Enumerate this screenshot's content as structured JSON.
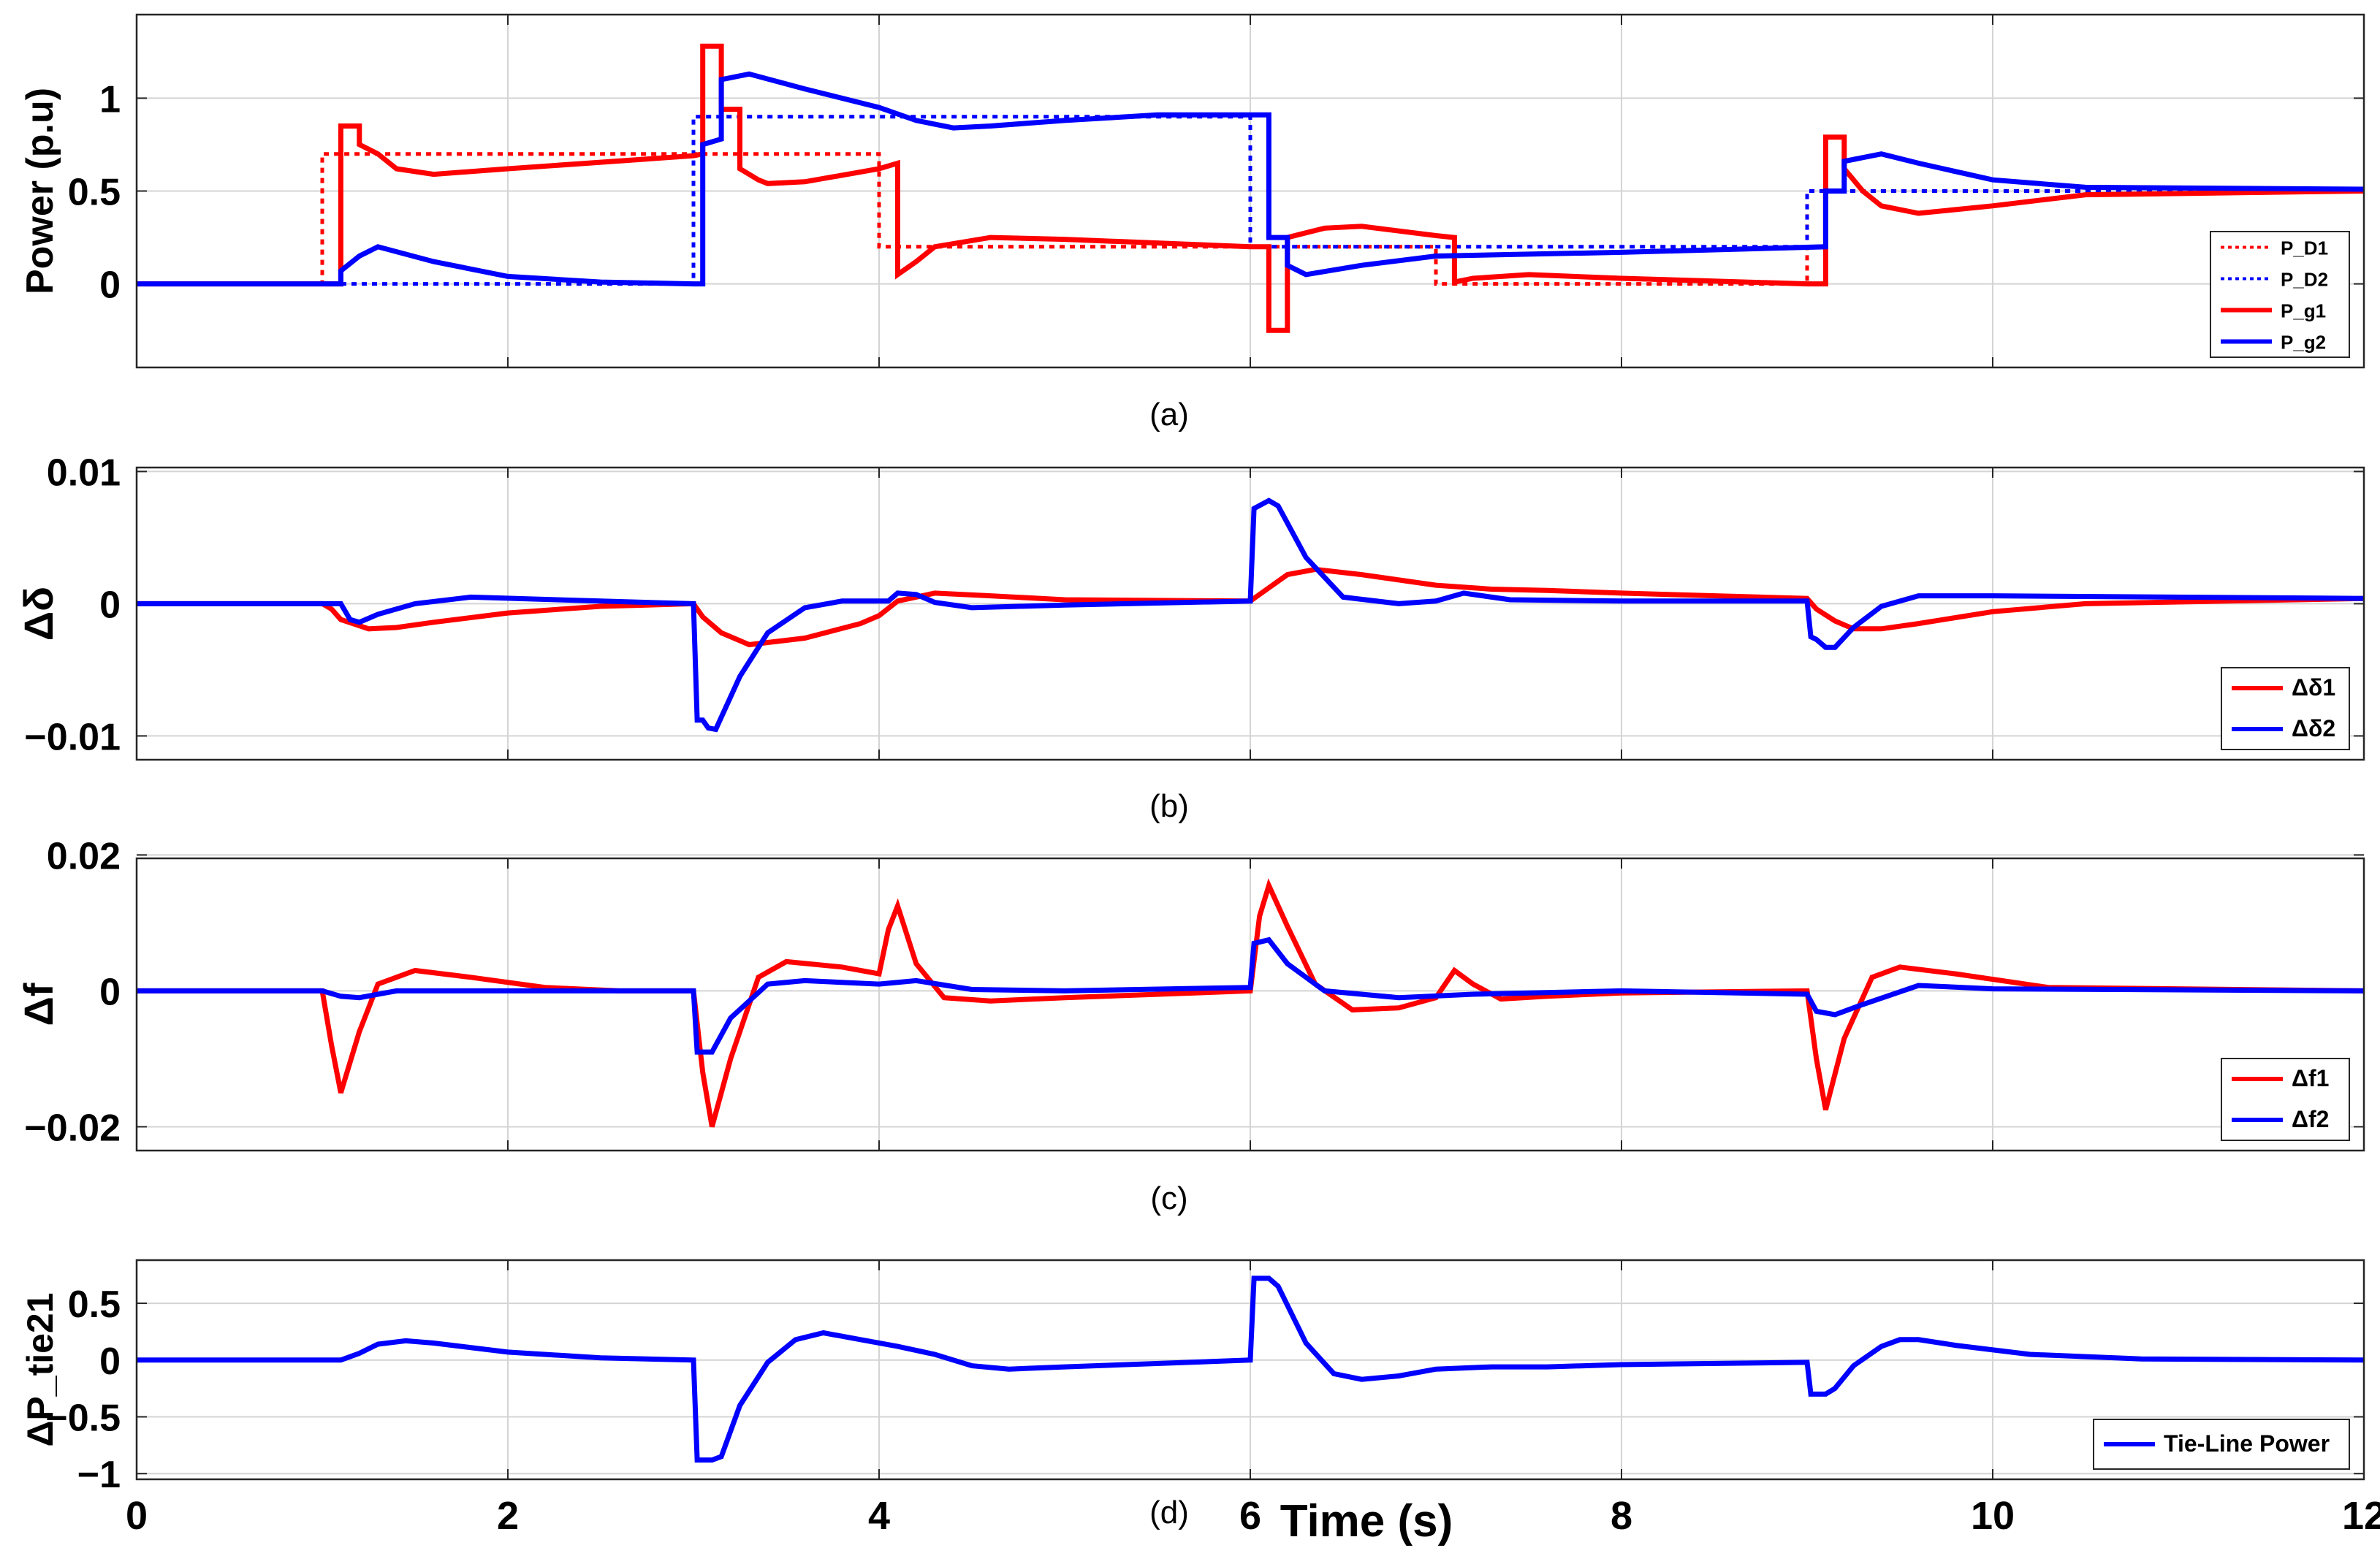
{
  "chart_data": [
    {
      "type": "line",
      "caption": "(a)",
      "ylabel": "Power (p.u)",
      "xlim": [
        0,
        12
      ],
      "ylim": [
        -0.45,
        1.45
      ],
      "xticks": [
        0,
        2,
        4,
        6,
        8,
        10,
        12
      ],
      "yticks": [
        0,
        0.5,
        1
      ],
      "ytick_labels": [
        "0",
        "0.5",
        "1"
      ],
      "grid": true,
      "legend_position": "bottom-right",
      "series": [
        {
          "name": "P_D1",
          "color": "#ff0000",
          "style": "dotted",
          "x": [
            0,
            1,
            1,
            4,
            4,
            7,
            7,
            9,
            9,
            12
          ],
          "y": [
            0,
            0,
            0.7,
            0.7,
            0.2,
            0.2,
            0,
            0,
            0.5,
            0.5
          ]
        },
        {
          "name": "P_D2",
          "color": "#0000ff",
          "style": "dotted",
          "x": [
            0,
            3,
            3,
            6,
            6,
            9,
            9,
            12
          ],
          "y": [
            0,
            0,
            0.9,
            0.9,
            0.2,
            0.2,
            0.5,
            0.5
          ]
        },
        {
          "name": "P_g1",
          "color": "#ff0000",
          "style": "solid",
          "x": [
            0,
            1.1,
            1.1,
            1.2,
            1.2,
            1.3,
            1.4,
            1.6,
            2,
            3,
            3.05,
            3.05,
            3.15,
            3.15,
            3.25,
            3.25,
            3.35,
            3.4,
            3.6,
            4,
            4.1,
            4.1,
            4.2,
            4.3,
            4.6,
            5,
            6,
            6.1,
            6.1,
            6.2,
            6.2,
            6.4,
            6.6,
            7,
            7.1,
            7.1,
            7.2,
            7.5,
            8,
            9,
            9.1,
            9.1,
            9.2,
            9.2,
            9.3,
            9.4,
            9.6,
            10,
            10.5,
            12
          ],
          "y": [
            0,
            0,
            0.85,
            0.85,
            0.75,
            0.7,
            0.62,
            0.59,
            0.62,
            0.69,
            0.7,
            1.28,
            1.28,
            0.94,
            0.94,
            0.62,
            0.56,
            0.54,
            0.55,
            0.62,
            0.65,
            0.05,
            0.12,
            0.2,
            0.25,
            0.24,
            0.2,
            0.2,
            -0.25,
            -0.25,
            0.25,
            0.3,
            0.31,
            0.26,
            0.25,
            0.01,
            0.03,
            0.05,
            0.03,
            0,
            0,
            0.79,
            0.79,
            0.62,
            0.5,
            0.42,
            0.38,
            0.42,
            0.48,
            0.5
          ]
        },
        {
          "name": "P_g2",
          "color": "#0000ff",
          "style": "solid",
          "x": [
            0,
            1.1,
            1.1,
            1.2,
            1.3,
            1.6,
            2,
            2.5,
            3,
            3.05,
            3.05,
            3.15,
            3.15,
            3.3,
            3.6,
            4,
            4.2,
            4.4,
            4.6,
            5,
            5.5,
            6.1,
            6.1,
            6.2,
            6.2,
            6.3,
            6.6,
            7,
            7.5,
            8,
            9.1,
            9.1,
            9.2,
            9.2,
            9.4,
            9.6,
            10,
            10.5,
            12
          ],
          "y": [
            0,
            0,
            0.07,
            0.15,
            0.2,
            0.12,
            0.04,
            0.01,
            0,
            0,
            0.75,
            0.78,
            1.1,
            1.13,
            1.05,
            0.95,
            0.88,
            0.84,
            0.85,
            0.88,
            0.91,
            0.91,
            0.25,
            0.25,
            0.1,
            0.05,
            0.1,
            0.15,
            0.16,
            0.17,
            0.2,
            0.5,
            0.5,
            0.66,
            0.7,
            0.65,
            0.56,
            0.52,
            0.51
          ]
        }
      ]
    },
    {
      "type": "line",
      "caption": "(b)",
      "ylabel": "Δδ",
      "xlim": [
        0,
        12
      ],
      "ylim": [
        -0.0118,
        0.0103
      ],
      "xticks": [
        0,
        2,
        4,
        6,
        8,
        10,
        12
      ],
      "yticks": [
        -0.01,
        0,
        0.01
      ],
      "ytick_labels": [
        "−0.01",
        "0",
        "0.01"
      ],
      "grid": true,
      "legend_position": "bottom-right",
      "series": [
        {
          "name": "Δδ1",
          "color": "#ff0000",
          "style": "solid",
          "x": [
            0,
            1.0,
            1.05,
            1.1,
            1.25,
            1.4,
            1.6,
            2,
            2.5,
            3.0,
            3.05,
            3.15,
            3.3,
            3.6,
            3.9,
            4.0,
            4.1,
            4.3,
            4.6,
            5,
            6.0,
            6.1,
            6.2,
            6.35,
            6.6,
            7,
            7.3,
            7.6,
            8,
            9,
            9.05,
            9.15,
            9.25,
            9.4,
            9.6,
            10,
            10.5,
            12
          ],
          "y": [
            0,
            0,
            -0.0004,
            -0.0012,
            -0.0019,
            -0.0018,
            -0.0014,
            -0.0007,
            -0.0002,
            0,
            -0.001,
            -0.0022,
            -0.0031,
            -0.0026,
            -0.0015,
            -0.0009,
            0.0002,
            0.0008,
            0.0006,
            0.0003,
            0.0002,
            0.0012,
            0.0022,
            0.0026,
            0.0022,
            0.0014,
            0.0011,
            0.001,
            0.0008,
            0.0004,
            -0.0004,
            -0.0013,
            -0.0019,
            -0.0019,
            -0.0015,
            -0.0006,
            0,
            0.0004
          ]
        },
        {
          "name": "Δδ2",
          "color": "#0000ff",
          "style": "solid",
          "x": [
            0,
            1.1,
            1.15,
            1.2,
            1.3,
            1.5,
            1.8,
            2.5,
            3.0,
            3.02,
            3.05,
            3.08,
            3.12,
            3.25,
            3.4,
            3.6,
            3.8,
            4.05,
            4.1,
            4.2,
            4.3,
            4.5,
            5,
            6.0,
            6.02,
            6.1,
            6.15,
            6.3,
            6.5,
            6.8,
            7.0,
            7.15,
            7.4,
            8,
            9.0,
            9.02,
            9.05,
            9.1,
            9.15,
            9.25,
            9.4,
            9.6,
            10,
            12
          ],
          "y": [
            0,
            0,
            -0.0012,
            -0.0014,
            -0.0008,
            0,
            0.0005,
            0.0002,
            0,
            -0.0088,
            -0.0088,
            -0.0094,
            -0.0095,
            -0.0055,
            -0.0022,
            -0.0003,
            0.0002,
            0.0002,
            0.0008,
            0.0007,
            0.0001,
            -0.0003,
            -0.0001,
            0.0002,
            0.0072,
            0.0078,
            0.0074,
            0.0035,
            0.0005,
            0,
            0.0002,
            0.0008,
            0.0003,
            0.0002,
            0.0002,
            -0.0025,
            -0.0027,
            -0.0033,
            -0.0033,
            -0.0018,
            -0.0002,
            0.0006,
            0.0006,
            0.0004
          ]
        }
      ]
    },
    {
      "type": "line",
      "caption": "(c)",
      "ylabel": "Δf",
      "xlim": [
        0,
        12
      ],
      "ylim": [
        -0.0235,
        0.0195
      ],
      "xticks": [
        0,
        2,
        4,
        6,
        8,
        10,
        12
      ],
      "yticks": [
        -0.02,
        0,
        0.02
      ],
      "ytick_labels": [
        "−0.02",
        "0",
        "0.02"
      ],
      "grid": true,
      "legend_position": "bottom-right",
      "series": [
        {
          "name": "Δf1",
          "color": "#ff0000",
          "style": "solid",
          "x": [
            0,
            1.0,
            1.05,
            1.1,
            1.2,
            1.3,
            1.5,
            1.8,
            2.2,
            2.6,
            3.0,
            3.05,
            3.1,
            3.2,
            3.35,
            3.5,
            3.8,
            4.0,
            4.05,
            4.1,
            4.2,
            4.35,
            4.6,
            5,
            6.0,
            6.05,
            6.1,
            6.2,
            6.35,
            6.55,
            6.8,
            7.0,
            7.1,
            7.2,
            7.35,
            7.6,
            8,
            9.0,
            9.05,
            9.1,
            9.2,
            9.35,
            9.5,
            9.8,
            10.3,
            12
          ],
          "y": [
            0,
            0,
            -0.008,
            -0.015,
            -0.006,
            0.001,
            0.003,
            0.002,
            0.0005,
            0,
            0,
            -0.012,
            -0.02,
            -0.01,
            0.002,
            0.0043,
            0.0035,
            0.0025,
            0.009,
            0.0125,
            0.004,
            -0.001,
            -0.0015,
            -0.001,
            0,
            0.011,
            0.0155,
            0.0095,
            0.001,
            -0.0028,
            -0.0025,
            -0.001,
            0.003,
            0.001,
            -0.0012,
            -0.0008,
            -0.0003,
            0,
            -0.01,
            -0.0175,
            -0.007,
            0.002,
            0.0035,
            0.0025,
            0.0005,
            0
          ]
        },
        {
          "name": "Δf2",
          "color": "#0000ff",
          "style": "solid",
          "x": [
            0,
            1.0,
            1.1,
            1.2,
            1.4,
            1.8,
            3.0,
            3.02,
            3.1,
            3.2,
            3.4,
            3.6,
            4.0,
            4.2,
            4.5,
            5,
            6.0,
            6.02,
            6.1,
            6.2,
            6.4,
            6.8,
            7.2,
            8,
            9.0,
            9.05,
            9.15,
            9.3,
            9.6,
            10,
            12
          ],
          "y": [
            0,
            0,
            -0.0008,
            -0.001,
            0,
            0,
            0,
            -0.009,
            -0.009,
            -0.004,
            0.001,
            0.0015,
            0.001,
            0.0015,
            0.0002,
            0,
            0.0005,
            0.007,
            0.0075,
            0.004,
            0,
            -0.001,
            -0.0005,
            0,
            -0.0005,
            -0.003,
            -0.0035,
            -0.002,
            0.0008,
            0.0003,
            0
          ]
        }
      ]
    },
    {
      "type": "line",
      "caption": "(d)",
      "ylabel": "ΔP_tie21",
      "xlabel": "Time (s)",
      "xlim": [
        0,
        12
      ],
      "ylim": [
        -1.05,
        0.88
      ],
      "xticks": [
        0,
        2,
        4,
        6,
        8,
        10,
        12
      ],
      "xtick_labels": [
        "0",
        "2",
        "4",
        "6",
        "8",
        "10",
        "12"
      ],
      "yticks": [
        -1,
        -0.5,
        0,
        0.5
      ],
      "ytick_labels": [
        "−1",
        "−0.5",
        "0",
        "0.5"
      ],
      "grid": true,
      "legend_position": "bottom-right",
      "series": [
        {
          "name": "Tie-Line Power",
          "color": "#0000ff",
          "style": "solid",
          "x": [
            0,
            1.1,
            1.2,
            1.3,
            1.45,
            1.6,
            2.0,
            2.5,
            3.0,
            3.02,
            3.1,
            3.15,
            3.25,
            3.4,
            3.55,
            3.7,
            3.9,
            4.1,
            4.3,
            4.5,
            4.7,
            5,
            6.0,
            6.02,
            6.1,
            6.15,
            6.3,
            6.45,
            6.6,
            6.8,
            7.0,
            7.3,
            7.6,
            8,
            9.0,
            9.02,
            9.1,
            9.15,
            9.25,
            9.4,
            9.5,
            9.6,
            9.8,
            10.2,
            10.8,
            12
          ],
          "y": [
            0,
            0,
            0.06,
            0.14,
            0.17,
            0.15,
            0.07,
            0.02,
            0,
            -0.88,
            -0.88,
            -0.85,
            -0.4,
            -0.02,
            0.18,
            0.24,
            0.18,
            0.12,
            0.05,
            -0.05,
            -0.08,
            -0.06,
            0,
            0.72,
            0.72,
            0.65,
            0.15,
            -0.12,
            -0.17,
            -0.14,
            -0.08,
            -0.06,
            -0.06,
            -0.04,
            -0.02,
            -0.3,
            -0.3,
            -0.25,
            -0.05,
            0.12,
            0.18,
            0.18,
            0.13,
            0.05,
            0.01,
            0
          ]
        }
      ]
    }
  ]
}
